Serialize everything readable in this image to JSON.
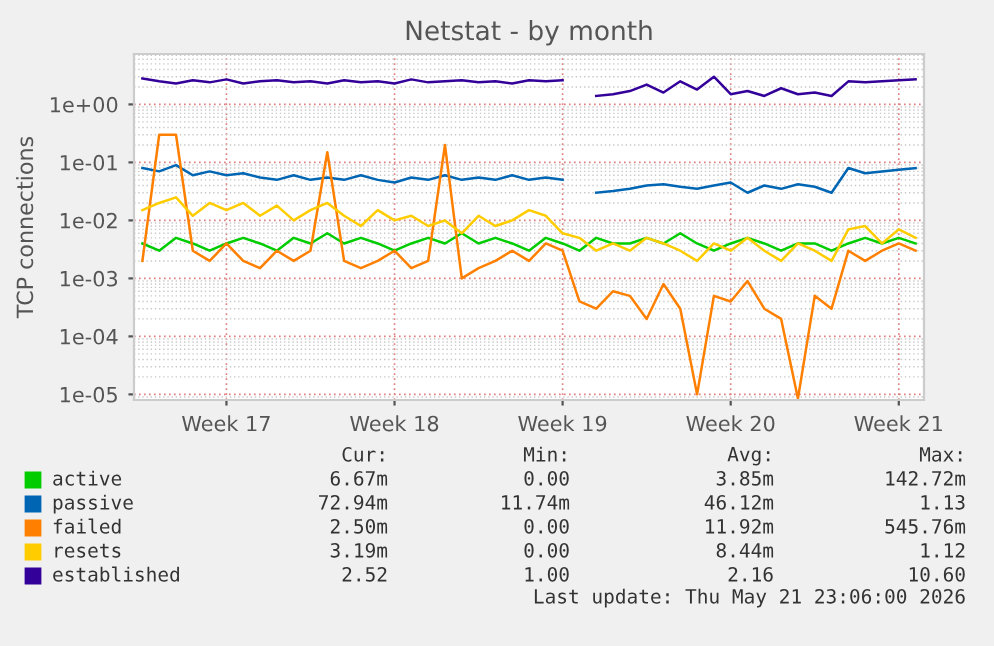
{
  "chart_data": {
    "type": "line",
    "title": "Netstat - by month",
    "ylabel": "TCP connections",
    "log": true,
    "grid": true,
    "legend": "bottom",
    "categories": [
      null,
      null,
      null,
      null,
      null,
      "Week 17",
      null,
      null,
      null,
      null,
      null,
      null,
      null,
      null,
      null,
      "Week 18",
      null,
      null,
      null,
      null,
      null,
      null,
      null,
      null,
      null,
      "Week 19",
      null,
      null,
      null,
      null,
      null,
      null,
      null,
      null,
      null,
      "Week 20",
      null,
      null,
      null,
      null,
      null,
      null,
      null,
      null,
      null,
      "Week 21",
      null
    ],
    "ylim": [
      8e-06,
      7.4
    ],
    "yticks": [
      {
        "value": 1e-05,
        "label": "1e-05"
      },
      {
        "value": 0.0001,
        "label": "1e-04"
      },
      {
        "value": 0.001,
        "label": "1e-03"
      },
      {
        "value": 0.01,
        "label": "1e-02"
      },
      {
        "value": 0.1,
        "label": "1e-01"
      },
      {
        "value": 1,
        "label": "1e+00"
      }
    ],
    "series": [
      {
        "name": "active",
        "color": "#00cc00",
        "values": [
          0.004,
          0.003,
          0.005,
          0.004,
          0.003,
          0.004,
          0.005,
          0.004,
          0.003,
          0.005,
          0.004,
          0.006,
          0.004,
          0.005,
          0.004,
          0.003,
          0.004,
          0.005,
          0.004,
          0.006,
          0.004,
          0.005,
          0.004,
          0.003,
          0.005,
          0.004,
          0.003,
          0.005,
          0.004,
          0.004,
          0.005,
          0.004,
          0.006,
          0.004,
          0.003,
          0.004,
          0.005,
          0.004,
          0.003,
          0.004,
          0.004,
          0.003,
          0.004,
          0.005,
          0.004,
          0.005,
          0.004
        ]
      },
      {
        "name": "passive",
        "color": "#0066b3",
        "values": [
          0.08,
          0.07,
          0.09,
          0.06,
          0.07,
          0.06,
          0.065,
          0.055,
          0.05,
          0.06,
          0.05,
          0.055,
          0.05,
          0.06,
          0.05,
          0.045,
          0.055,
          0.05,
          0.06,
          0.05,
          0.055,
          0.05,
          0.06,
          0.05,
          0.055,
          0.05,
          null,
          0.03,
          0.032,
          0.035,
          0.04,
          0.042,
          0.038,
          0.035,
          0.04,
          0.045,
          0.03,
          0.04,
          0.035,
          0.042,
          0.038,
          0.03,
          0.08,
          0.065,
          0.07,
          0.075,
          0.08
        ]
      },
      {
        "name": "failed",
        "color": "#ff8000",
        "values": [
          0.002,
          0.3,
          0.3,
          0.003,
          0.002,
          0.004,
          0.002,
          0.0015,
          0.003,
          0.002,
          0.003,
          0.15,
          0.002,
          0.0015,
          0.002,
          0.003,
          0.0015,
          0.002,
          0.2,
          0.001,
          0.0015,
          0.002,
          0.003,
          0.002,
          0.004,
          0.003,
          0.0004,
          0.0003,
          0.0006,
          0.0005,
          0.0002,
          0.0008,
          0.0003,
          1e-05,
          0.0005,
          0.0004,
          0.0009,
          0.0003,
          0.0002,
          8.5e-06,
          0.0005,
          0.0003,
          0.003,
          0.002,
          0.003,
          0.004,
          0.003
        ]
      },
      {
        "name": "resets",
        "color": "#ffcc00",
        "values": [
          0.015,
          0.02,
          0.025,
          0.012,
          0.02,
          0.015,
          0.02,
          0.012,
          0.018,
          0.01,
          0.015,
          0.02,
          0.012,
          0.008,
          0.015,
          0.01,
          0.012,
          0.008,
          0.01,
          0.006,
          0.012,
          0.008,
          0.01,
          0.015,
          0.012,
          0.006,
          0.005,
          0.003,
          0.004,
          0.003,
          0.005,
          0.004,
          0.003,
          0.002,
          0.004,
          0.003,
          0.005,
          0.003,
          0.002,
          0.004,
          0.003,
          0.002,
          0.007,
          0.008,
          0.004,
          0.007,
          0.005
        ]
      },
      {
        "name": "established",
        "color": "#330099",
        "values": [
          2.8,
          2.5,
          2.3,
          2.6,
          2.4,
          2.7,
          2.3,
          2.5,
          2.6,
          2.4,
          2.5,
          2.3,
          2.6,
          2.4,
          2.5,
          2.3,
          2.7,
          2.4,
          2.5,
          2.6,
          2.4,
          2.5,
          2.3,
          2.6,
          2.5,
          2.6,
          null,
          1.4,
          1.5,
          1.7,
          2.2,
          1.6,
          2.5,
          1.8,
          3.0,
          1.5,
          1.7,
          1.4,
          1.9,
          1.5,
          1.6,
          1.4,
          2.5,
          2.4,
          2.5,
          2.6,
          2.7
        ]
      }
    ],
    "annotations": [
      "Cur:",
      "Min:",
      "Avg:",
      "Max:",
      "6.67m",
      "0.00",
      "3.85m",
      "142.72m",
      "72.94m",
      "11.74m",
      "46.12m",
      "1.13",
      "2.50m",
      "0.00",
      "11.92m",
      "545.76m",
      "3.19m",
      "0.00",
      "8.44m",
      "1.12",
      "2.52",
      "1.00",
      "2.16",
      "10.60",
      "Last update: Thu May 21 23:06:00 2026"
    ]
  }
}
